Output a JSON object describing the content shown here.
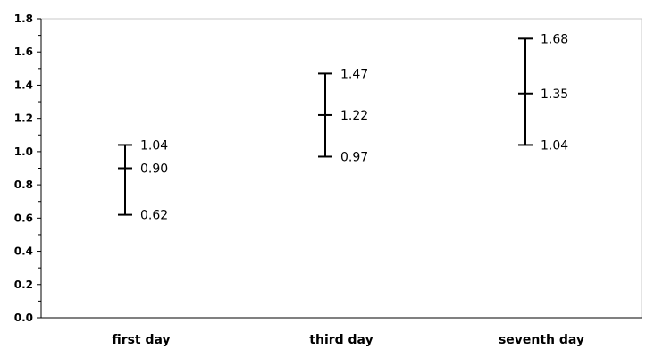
{
  "chart_data": {
    "type": "error-bar",
    "title": "",
    "xlabel": "",
    "ylabel": "",
    "ylim": [
      0,
      1.8
    ],
    "yticks": [
      "0.0",
      "0.2",
      "0.4",
      "0.6",
      "0.8",
      "1.0",
      "1.2",
      "1.4",
      "1.6",
      "1.8"
    ],
    "categories": [
      "first day",
      "third day",
      "seventh day"
    ],
    "points": [
      {
        "category": "first day",
        "low": 0.62,
        "mid": 0.9,
        "high": 1.04,
        "low_label": "0.62",
        "mid_label": "0.90",
        "high_label": "1.04"
      },
      {
        "category": "third day",
        "low": 0.97,
        "mid": 1.22,
        "high": 1.47,
        "low_label": "0.97",
        "mid_label": "1.22",
        "high_label": "1.47"
      },
      {
        "category": "seventh day",
        "low": 1.04,
        "mid": 1.35,
        "high": 1.68,
        "low_label": "1.04",
        "mid_label": "1.35",
        "high_label": "1.68"
      }
    ],
    "grid": false,
    "legend": "none"
  }
}
